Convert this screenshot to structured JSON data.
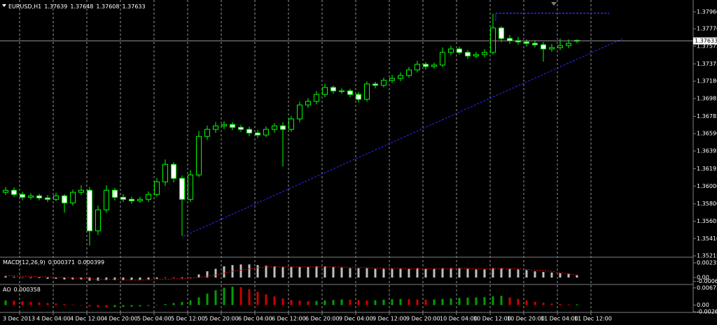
{
  "chart_data": [
    {
      "type": "candlestick",
      "title": "EURUSD,H1",
      "open": [
        1.3593,
        1.35953,
        1.35906,
        1.35874,
        1.3589,
        1.35867,
        1.35851,
        1.3589,
        1.35811,
        1.3593,
        1.35953,
        1.35497,
        1.35733,
        1.35953,
        1.35874,
        1.35851,
        1.35835,
        1.35851,
        1.35906,
        1.36048,
        1.36244,
        1.36087,
        1.35851,
        1.36126,
        1.36559,
        1.36638,
        1.36677,
        1.36693,
        1.36661,
        1.36638,
        1.36598,
        1.36575,
        1.36638,
        1.36677,
        1.36638,
        1.36756,
        1.36913,
        1.36953,
        1.37031,
        1.3711,
        1.37071,
        1.37071,
        1.37031,
        1.36976,
        1.37149,
        1.37134,
        1.37189,
        1.37212,
        1.37244,
        1.37307,
        1.3737,
        1.37346,
        1.37362,
        1.37504,
        1.37543,
        1.37504,
        1.37464,
        1.3748,
        1.37504,
        1.37779,
        1.37661,
        1.37637,
        1.37622,
        1.37606,
        1.3759,
        1.37543,
        1.37559,
        1.37582,
        1.37639
      ],
      "high": [
        1.3599,
        1.35985,
        1.35935,
        1.3592,
        1.35915,
        1.359,
        1.35925,
        1.3591,
        1.3596,
        1.3601,
        1.3599,
        1.3578,
        1.3601,
        1.3598,
        1.3591,
        1.3588,
        1.3588,
        1.3594,
        1.3609,
        1.363,
        1.3627,
        1.3612,
        1.3618,
        1.3662,
        1.3668,
        1.3672,
        1.3673,
        1.3672,
        1.3669,
        1.3667,
        1.3663,
        1.3667,
        1.3671,
        1.3672,
        1.3679,
        1.3695,
        1.3699,
        1.3707,
        1.3715,
        1.3713,
        1.371,
        1.37095,
        1.3706,
        1.3718,
        1.37175,
        1.3722,
        1.3725,
        1.3728,
        1.3734,
        1.3741,
        1.37395,
        1.3739,
        1.3756,
        1.3758,
        1.3757,
        1.3753,
        1.3751,
        1.3754,
        1.3794,
        1.378,
        1.377,
        1.3768,
        1.3765,
        1.3764,
        1.3762,
        1.376,
        1.3766,
        1.3765,
        1.37648
      ],
      "low": [
        1.359,
        1.3588,
        1.3584,
        1.3585,
        1.3584,
        1.3582,
        1.3583,
        1.357,
        1.3578,
        1.359,
        1.3533,
        1.3545,
        1.357,
        1.3584,
        1.3582,
        1.358,
        1.3581,
        1.3582,
        1.3588,
        1.36,
        1.3604,
        1.3544,
        1.3582,
        1.361,
        1.3652,
        1.366,
        1.3664,
        1.3663,
        1.3661,
        1.3656,
        1.3654,
        1.3655,
        1.366,
        1.3622,
        1.3661,
        1.3672,
        1.3688,
        1.3692,
        1.37,
        1.3704,
        1.3704,
        1.37,
        1.3694,
        1.3695,
        1.371,
        1.3711,
        1.3716,
        1.3718,
        1.3722,
        1.3728,
        1.3731,
        1.3732,
        1.3734,
        1.3747,
        1.3748,
        1.3743,
        1.3744,
        1.3745,
        1.3748,
        1.3762,
        1.376,
        1.3759,
        1.3757,
        1.3756,
        1.374,
        1.3751,
        1.3753,
        1.3755,
        1.37608
      ],
      "close": [
        1.35953,
        1.35906,
        1.35874,
        1.3589,
        1.35867,
        1.35851,
        1.3589,
        1.35811,
        1.3593,
        1.35953,
        1.35497,
        1.35733,
        1.35953,
        1.35874,
        1.35851,
        1.35835,
        1.35851,
        1.35906,
        1.36048,
        1.36244,
        1.36087,
        1.35851,
        1.36126,
        1.36559,
        1.36638,
        1.36677,
        1.36693,
        1.36661,
        1.36638,
        1.36598,
        1.36575,
        1.36638,
        1.36677,
        1.36638,
        1.36756,
        1.36913,
        1.36953,
        1.37031,
        1.3711,
        1.37071,
        1.37071,
        1.37031,
        1.36976,
        1.37149,
        1.37134,
        1.37189,
        1.37212,
        1.37244,
        1.37307,
        1.3737,
        1.37346,
        1.37362,
        1.37504,
        1.37543,
        1.37504,
        1.37464,
        1.3748,
        1.37504,
        1.37779,
        1.37661,
        1.37637,
        1.37622,
        1.37606,
        1.3759,
        1.37543,
        1.37559,
        1.37582,
        1.37606,
        1.37633
      ],
      "colors": {
        "outline": "#00ff00",
        "bull": "#000000",
        "bear": "#ffffff"
      },
      "ylim": [
        1.352,
        1.3807
      ],
      "yticks": [
        {
          "value": 1.3796,
          "label": "1.37960"
        },
        {
          "value": 1.3777,
          "label": "1.37770"
        },
        1.37575,
        1.37375,
        {
          "value": 1.3718,
          "label": "1.37180"
        },
        1.36985,
        1.36785,
        {
          "value": 1.3659,
          "label": "1.36590"
        },
        1.36395,
        1.36195,
        {
          "value": 1.36,
          "label": "1.36000"
        },
        {
          "value": 1.358,
          "label": "1.35800"
        },
        1.35605,
        {
          "value": 1.3541,
          "label": "1.35410"
        },
        1.35215
      ],
      "xticks": [
        "3 Dec 2013",
        "4 Dec 04:00",
        "4 Dec 12:00",
        "4 Dec 20:00",
        "5 Dec 04:00",
        "5 Dec 12:00",
        "5 Dec 20:00",
        "6 Dec 04:00",
        "6 Dec 12:00",
        "6 Dec 20:00",
        "9 Dec 04:00",
        "9 Dec 12:00",
        "9 Dec 20:00",
        "10 Dec 04:00",
        "10 Dec 12:00",
        "10 Dec 20:00",
        "11 Dec 04:00",
        "11 Dec 12:00"
      ],
      "grid": true
    },
    {
      "type": "bar",
      "title": "MACD(12,26,9)",
      "series": [
        {
          "type": "bar",
          "color": "#c0c0c0",
          "values": [
            0.0002,
            0.0001,
            0,
            -0.0001,
            -0.0001,
            -0.0002,
            -0.0002,
            -0.0003,
            -0.0003,
            -0.0003,
            -0.0005,
            -0.0005,
            -0.0004,
            -0.0004,
            -0.0004,
            -0.0004,
            -0.0004,
            -0.0003,
            -0.0002,
            0,
            0,
            -0.0001,
            0,
            0.0005,
            0.001,
            0.0014,
            0.0018,
            0.002,
            0.0021,
            0.0021,
            0.002,
            0.0019,
            0.0018,
            0.0017,
            0.0017,
            0.0017,
            0.0017,
            0.0018,
            0.0018,
            0.0017,
            0.0016,
            0.0015,
            0.0015,
            0.0015,
            0.0014,
            0.0014,
            0.0014,
            0.0014,
            0.0014,
            0.0015,
            0.0014,
            0.0014,
            0.0015,
            0.0015,
            0.0015,
            0.0014,
            0.0013,
            0.0013,
            0.0015,
            0.0015,
            0.0014,
            0.0013,
            0.0012,
            0.001,
            0.0009,
            0.0008,
            0.0007,
            0.0006,
            0.000371
          ]
        },
        {
          "type": "line",
          "color": "#ff0000",
          "values": [
            0.0003,
            0.0003,
            0.0002,
            0.0002,
            0.0001,
            0.0001,
            0,
            0,
            -0.0001,
            -0.0001,
            -0.0002,
            -0.0003,
            -0.0003,
            -0.0003,
            -0.0004,
            -0.0004,
            -0.0004,
            -0.0004,
            -0.0003,
            -0.0003,
            -0.0002,
            -0.0002,
            -0.0001,
            0,
            0.0002,
            0.0004,
            0.0007,
            0.001,
            0.0012,
            0.0014,
            0.0016,
            0.0017,
            0.0017,
            0.0017,
            0.0017,
            0.0017,
            0.0017,
            0.0017,
            0.0017,
            0.0017,
            0.0017,
            0.0016,
            0.0016,
            0.0016,
            0.0015,
            0.0015,
            0.0015,
            0.0015,
            0.0014,
            0.0014,
            0.0014,
            0.0014,
            0.0014,
            0.0014,
            0.0015,
            0.0015,
            0.0014,
            0.0014,
            0.0014,
            0.0014,
            0.0014,
            0.0014,
            0.0013,
            0.0012,
            0.0011,
            0.001,
            0.0008,
            0.0006,
            0.000399
          ]
        }
      ],
      "ylim": [
        -0.001,
        0.00315
      ],
      "yticks": [
        0.002359,
        {
          "value": 0,
          "label": "0.00"
        },
        -0.000627
      ]
    },
    {
      "type": "bar",
      "title": "AO",
      "values": [
        0.0018,
        0.0017,
        0.0015,
        0.0012,
        0.001,
        0.0008,
        0.0006,
        0.0004,
        0.0002,
        -0.0002,
        -0.0006,
        -0.0008,
        -0.0009,
        -0.0008,
        -0.0007,
        -0.0006,
        -0.0005,
        -0.0003,
        0,
        0.0004,
        0.0008,
        0.0012,
        0.0018,
        0.003,
        0.0045,
        0.0058,
        0.0068,
        0.0072,
        0.007,
        0.0062,
        0.0052,
        0.0042,
        0.0034,
        0.0026,
        0.002,
        0.0017,
        0.0015,
        0.0016,
        0.0018,
        0.002,
        0.0022,
        0.0021,
        0.0019,
        0.0018,
        0.0019,
        0.0021,
        0.0023,
        0.0024,
        0.0023,
        0.0022,
        0.0021,
        0.0022,
        0.0024,
        0.0026,
        0.0028,
        0.0029,
        0.003,
        0.0031,
        0.0034,
        0.0036,
        0.003,
        0.0024,
        0.0018,
        0.0013,
        0.0009,
        0.0006,
        0.0004,
        0.0003,
        0.000358
      ],
      "colors": {
        "up": "#00a000",
        "down": "#d00000"
      },
      "ylim": [
        -0.0026,
        0.0078
      ],
      "yticks": [
        0.006728,
        {
          "value": 0,
          "label": "0.00"
        },
        -0.002635
      ]
    }
  ]
}
